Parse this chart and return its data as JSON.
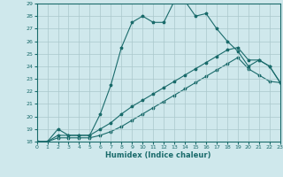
{
  "xlabel": "Humidex (Indice chaleur)",
  "bg_color": "#cfe8ec",
  "grid_color": "#aac8cc",
  "line_color": "#1a6b6b",
  "xlim": [
    0,
    23
  ],
  "ylim": [
    18,
    29
  ],
  "xticks": [
    0,
    1,
    2,
    3,
    4,
    5,
    6,
    7,
    8,
    9,
    10,
    11,
    12,
    13,
    14,
    15,
    16,
    17,
    18,
    19,
    20,
    21,
    22,
    23
  ],
  "yticks": [
    18,
    19,
    20,
    21,
    22,
    23,
    24,
    25,
    26,
    27,
    28,
    29
  ],
  "line1_x": [
    0,
    1,
    2,
    3,
    4,
    5,
    6,
    7,
    8,
    9,
    10,
    11,
    12,
    13,
    14,
    15,
    16,
    17,
    18,
    19,
    20,
    21,
    22,
    23
  ],
  "line1_y": [
    18,
    18,
    19,
    18.5,
    18.5,
    18.5,
    20.2,
    22.5,
    25.5,
    27.5,
    28.0,
    27.5,
    27.5,
    29.2,
    29.2,
    28.0,
    28.2,
    27.0,
    26.0,
    25.2,
    24.0,
    24.5,
    24.0,
    22.7
  ],
  "line2_x": [
    0,
    1,
    2,
    3,
    4,
    5,
    6,
    7,
    8,
    9,
    10,
    11,
    12,
    13,
    14,
    15,
    16,
    17,
    18,
    19,
    20,
    21,
    22,
    23
  ],
  "line2_y": [
    18,
    18,
    18.5,
    18.5,
    18.5,
    18.5,
    19.0,
    19.5,
    20.2,
    20.8,
    21.3,
    21.8,
    22.3,
    22.8,
    23.3,
    23.8,
    24.3,
    24.8,
    25.3,
    25.5,
    24.5,
    24.5,
    24.0,
    22.7
  ],
  "line3_x": [
    0,
    1,
    2,
    3,
    4,
    5,
    6,
    7,
    8,
    9,
    10,
    11,
    12,
    13,
    14,
    15,
    16,
    17,
    18,
    19,
    20,
    21,
    22,
    23
  ],
  "line3_y": [
    18,
    18,
    18.3,
    18.3,
    18.3,
    18.3,
    18.5,
    18.8,
    19.2,
    19.7,
    20.2,
    20.7,
    21.2,
    21.7,
    22.2,
    22.7,
    23.2,
    23.7,
    24.2,
    24.7,
    23.8,
    23.3,
    22.8,
    22.7
  ]
}
